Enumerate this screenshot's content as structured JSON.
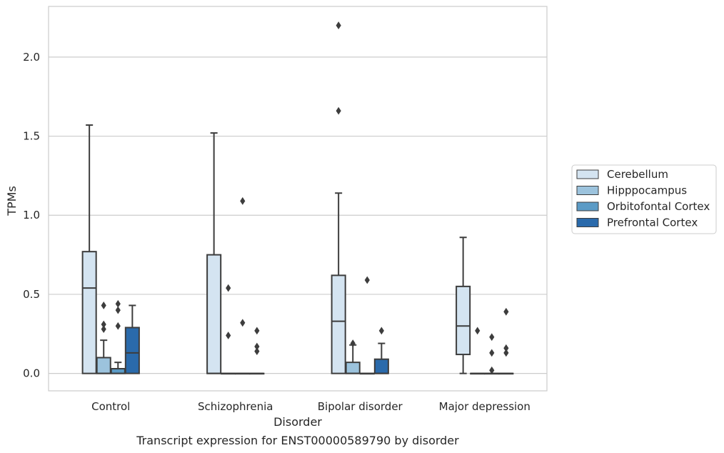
{
  "chart_data": {
    "type": "box",
    "xlabel": "Disorder",
    "ylabel": "TPMs",
    "caption": "Transcript expression for ENST00000589790 by disorder",
    "ylim": [
      -0.11,
      2.32
    ],
    "yticks": [
      "0.0",
      "0.5",
      "1.0",
      "1.5",
      "2.0"
    ],
    "grid": "horizontal",
    "legend_position": "right",
    "categories": [
      "Control",
      "Schizophrenia",
      "Bipolar disorder",
      "Major depression"
    ],
    "series": [
      {
        "name": "Cerebellum",
        "color": "#d4e4f1",
        "boxes": [
          {
            "q1": 0.0,
            "median": 0.54,
            "q3": 0.77,
            "whisker_low": 0.0,
            "whisker_high": 1.57,
            "outliers": []
          },
          {
            "q1": 0.0,
            "median": 0.0,
            "q3": 0.75,
            "whisker_low": 0.0,
            "whisker_high": 1.52,
            "outliers": []
          },
          {
            "q1": 0.0,
            "median": 0.33,
            "q3": 0.62,
            "whisker_low": 0.0,
            "whisker_high": 1.14,
            "outliers": [
              1.66,
              2.2
            ]
          },
          {
            "q1": 0.12,
            "median": 0.3,
            "q3": 0.55,
            "whisker_low": 0.0,
            "whisker_high": 0.86,
            "outliers": []
          }
        ]
      },
      {
        "name": "Hipppocampus",
        "color": "#9cc3dd",
        "boxes": [
          {
            "q1": 0.0,
            "median": 0.0,
            "q3": 0.1,
            "whisker_low": 0.0,
            "whisker_high": 0.21,
            "outliers": [
              0.28,
              0.31,
              0.43
            ]
          },
          {
            "q1": 0.0,
            "median": 0.0,
            "q3": 0.0,
            "whisker_low": 0.0,
            "whisker_high": 0.0,
            "outliers": [
              0.24,
              0.54
            ]
          },
          {
            "q1": 0.0,
            "median": 0.0,
            "q3": 0.07,
            "whisker_low": 0.0,
            "whisker_high": 0.18,
            "outliers": [
              0.19
            ]
          },
          {
            "q1": 0.0,
            "median": 0.0,
            "q3": 0.0,
            "whisker_low": 0.0,
            "whisker_high": 0.0,
            "outliers": [
              0.27
            ]
          }
        ]
      },
      {
        "name": "Orbitofontal Cortex",
        "color": "#5b9bc6",
        "boxes": [
          {
            "q1": 0.0,
            "median": 0.0,
            "q3": 0.03,
            "whisker_low": 0.0,
            "whisker_high": 0.07,
            "outliers": [
              0.3,
              0.4,
              0.44
            ]
          },
          {
            "q1": 0.0,
            "median": 0.0,
            "q3": 0.0,
            "whisker_low": 0.0,
            "whisker_high": 0.0,
            "outliers": [
              0.32,
              1.09
            ]
          },
          {
            "q1": 0.0,
            "median": 0.0,
            "q3": 0.0,
            "whisker_low": 0.0,
            "whisker_high": 0.0,
            "outliers": [
              0.59
            ]
          },
          {
            "q1": 0.0,
            "median": 0.0,
            "q3": 0.0,
            "whisker_low": 0.0,
            "whisker_high": 0.0,
            "outliers": [
              0.02,
              0.13,
              0.23
            ]
          }
        ]
      },
      {
        "name": "Prefrontal Cortex",
        "color": "#2a6aab",
        "boxes": [
          {
            "q1": 0.0,
            "median": 0.13,
            "q3": 0.29,
            "whisker_low": 0.0,
            "whisker_high": 0.43,
            "outliers": []
          },
          {
            "q1": 0.0,
            "median": 0.0,
            "q3": 0.0,
            "whisker_low": 0.0,
            "whisker_high": 0.0,
            "outliers": [
              0.14,
              0.17,
              0.27
            ]
          },
          {
            "q1": 0.0,
            "median": 0.0,
            "q3": 0.09,
            "whisker_low": 0.0,
            "whisker_high": 0.19,
            "outliers": [
              0.27
            ]
          },
          {
            "q1": 0.0,
            "median": 0.0,
            "q3": 0.0,
            "whisker_low": 0.0,
            "whisker_high": 0.0,
            "outliers": [
              0.13,
              0.16,
              0.39
            ]
          }
        ]
      }
    ]
  }
}
